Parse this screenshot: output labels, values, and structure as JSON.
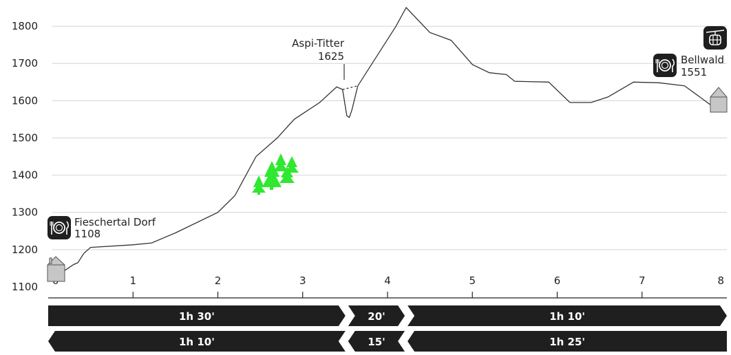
{
  "chart_data": {
    "type": "area",
    "xlim": [
      0,
      8
    ],
    "ylim": [
      1100,
      1850
    ],
    "yticks": [
      1100,
      1200,
      1300,
      1400,
      1500,
      1600,
      1700,
      1800
    ],
    "xticks": [
      0,
      1,
      2,
      3,
      4,
      5,
      6,
      7,
      8
    ],
    "grid": true,
    "profile": [
      [
        0,
        1115
      ],
      [
        0.05,
        1118
      ],
      [
        0.13,
        1122
      ],
      [
        0.2,
        1145
      ],
      [
        0.3,
        1160
      ],
      [
        0.35,
        1165
      ],
      [
        0.42,
        1190
      ],
      [
        0.5,
        1206
      ],
      [
        1.0,
        1213
      ],
      [
        1.22,
        1218
      ],
      [
        1.5,
        1245
      ],
      [
        2.0,
        1300
      ],
      [
        2.2,
        1345
      ],
      [
        2.45,
        1450
      ],
      [
        2.7,
        1500
      ],
      [
        2.9,
        1550
      ],
      [
        3.2,
        1595
      ],
      [
        3.4,
        1637
      ],
      [
        3.47,
        1630
      ],
      [
        3.52,
        1560
      ],
      [
        3.55,
        1555
      ],
      [
        3.58,
        1575
      ],
      [
        3.65,
        1640
      ],
      [
        4.1,
        1800
      ],
      [
        4.22,
        1850
      ],
      [
        4.5,
        1783
      ],
      [
        4.75,
        1762
      ],
      [
        5.0,
        1697
      ],
      [
        5.2,
        1675
      ],
      [
        5.4,
        1670
      ],
      [
        5.5,
        1652
      ],
      [
        5.9,
        1650
      ],
      [
        6.15,
        1595
      ],
      [
        6.4,
        1595
      ],
      [
        6.6,
        1610
      ],
      [
        6.9,
        1650
      ],
      [
        7.2,
        1648
      ],
      [
        7.5,
        1640
      ],
      [
        7.8,
        1590
      ],
      [
        7.95,
        1570
      ]
    ],
    "points": [
      {
        "label": "Fieschertal Dorf",
        "elevation": "1108",
        "x": 0
      },
      {
        "label": "Aspi-Titter",
        "elevation": "1625",
        "x": 3.52
      },
      {
        "label": "Bellwald",
        "elevation": "1551",
        "x": 8
      }
    ],
    "segments_forward": [
      {
        "label": "1h 30'",
        "from": 0,
        "to": 3.52
      },
      {
        "label": "20'",
        "from": 3.52,
        "to": 4.22
      },
      {
        "label": "1h 10'",
        "from": 4.22,
        "to": 8
      }
    ],
    "segments_back": [
      {
        "label": "1h 10'",
        "from": 0,
        "to": 3.52
      },
      {
        "label": "15'",
        "from": 3.52,
        "to": 4.22
      },
      {
        "label": "1h 25'",
        "from": 4.22,
        "to": 8
      }
    ]
  },
  "colors": {
    "grid": "#d4d4d4",
    "profile": "#333333",
    "segment": "#1f1f1f",
    "tree": "#2fe82f",
    "house": "#c6c6c6"
  },
  "icons": [
    "restaurant-icon",
    "cable-car-icon",
    "house-icon",
    "forest-icon"
  ]
}
